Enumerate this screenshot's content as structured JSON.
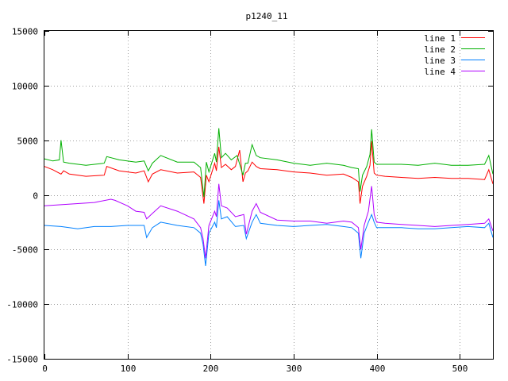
{
  "chart_data": {
    "type": "line",
    "title": "p1240_11",
    "xlabel": "",
    "ylabel": "",
    "xlim": [
      0,
      540
    ],
    "ylim": [
      -15000,
      15000
    ],
    "x_ticks": [
      0,
      100,
      200,
      300,
      400,
      500
    ],
    "y_ticks": [
      -15000,
      -10000,
      -5000,
      0,
      5000,
      10000,
      15000
    ],
    "grid": true,
    "legend_position": "top-right",
    "series": [
      {
        "name": "line 1",
        "color": "#ff0000",
        "x": [
          0,
          10,
          20,
          23,
          30,
          50,
          72,
          75,
          90,
          110,
          120,
          125,
          130,
          140,
          160,
          180,
          188,
          192,
          195,
          198,
          205,
          207,
          210,
          213,
          218,
          225,
          230,
          235,
          239,
          242,
          245,
          250,
          255,
          260,
          280,
          300,
          320,
          340,
          360,
          370,
          378,
          380,
          383,
          388,
          392,
          394,
          397,
          400,
          410,
          430,
          450,
          470,
          490,
          510,
          530,
          535,
          540
        ],
        "y": [
          2600,
          2300,
          1900,
          2200,
          1900,
          1700,
          1800,
          2600,
          2200,
          2000,
          2200,
          1200,
          1900,
          2300,
          2000,
          2100,
          1600,
          -800,
          1800,
          1200,
          2900,
          2200,
          4400,
          2500,
          2800,
          2300,
          2600,
          4100,
          1200,
          2000,
          2200,
          3000,
          2600,
          2400,
          2300,
          2100,
          2000,
          1800,
          1900,
          1600,
          1200,
          -800,
          800,
          1700,
          2700,
          4900,
          2000,
          1800,
          1700,
          1600,
          1500,
          1600,
          1500,
          1500,
          1400,
          2300,
          1000
        ]
      },
      {
        "name": "line 2",
        "color": "#00b000",
        "x": [
          0,
          10,
          18,
          20,
          23,
          30,
          50,
          72,
          75,
          90,
          110,
          120,
          125,
          130,
          140,
          160,
          180,
          188,
          192,
          195,
          198,
          205,
          207,
          210,
          213,
          218,
          225,
          232,
          239,
          242,
          245,
          250,
          255,
          260,
          280,
          300,
          320,
          340,
          360,
          370,
          378,
          380,
          383,
          388,
          392,
          394,
          397,
          400,
          410,
          430,
          450,
          470,
          490,
          510,
          530,
          535,
          540
        ],
        "y": [
          3300,
          3100,
          3200,
          5000,
          3000,
          2900,
          2700,
          2900,
          3500,
          3200,
          3000,
          3100,
          2200,
          2900,
          3600,
          3000,
          3000,
          2500,
          -200,
          3000,
          2100,
          3800,
          3000,
          6100,
          3400,
          3800,
          3200,
          3600,
          1800,
          2900,
          2900,
          4600,
          3600,
          3400,
          3200,
          2900,
          2700,
          2900,
          2700,
          2500,
          2400,
          300,
          1800,
          2600,
          3700,
          6000,
          3000,
          2800,
          2800,
          2800,
          2700,
          2900,
          2700,
          2700,
          2800,
          3600,
          1900
        ]
      },
      {
        "name": "line 3",
        "color": "#0080ff",
        "x": [
          0,
          20,
          40,
          60,
          80,
          100,
          110,
          120,
          123,
          130,
          140,
          160,
          180,
          188,
          191,
          194,
          198,
          205,
          207,
          210,
          213,
          220,
          230,
          240,
          243,
          250,
          255,
          260,
          280,
          300,
          320,
          340,
          360,
          370,
          378,
          381,
          385,
          390,
          394,
          397,
          400,
          410,
          430,
          450,
          470,
          490,
          510,
          530,
          535,
          540
        ],
        "y": [
          -2800,
          -2900,
          -3100,
          -2900,
          -2900,
          -2800,
          -2800,
          -2800,
          -3900,
          -3000,
          -2500,
          -2800,
          -3000,
          -3500,
          -4500,
          -6500,
          -3500,
          -2500,
          -3000,
          -500,
          -2200,
          -2000,
          -2900,
          -2800,
          -4000,
          -2500,
          -1800,
          -2600,
          -2800,
          -2900,
          -2800,
          -2700,
          -2900,
          -3000,
          -3500,
          -5800,
          -3500,
          -2500,
          -1800,
          -2500,
          -3000,
          -3000,
          -3000,
          -3100,
          -3100,
          -3000,
          -2900,
          -3000,
          -2600,
          -3900
        ]
      },
      {
        "name": "line 4",
        "color": "#b000ff",
        "x": [
          0,
          20,
          40,
          60,
          80,
          85,
          100,
          110,
          120,
          123,
          130,
          140,
          160,
          180,
          188,
          191,
          194,
          198,
          205,
          207,
          210,
          213,
          220,
          230,
          240,
          243,
          250,
          255,
          260,
          280,
          300,
          320,
          340,
          360,
          370,
          378,
          381,
          385,
          390,
          394,
          397,
          400,
          410,
          430,
          450,
          470,
          490,
          510,
          530,
          535,
          540
        ],
        "y": [
          -1000,
          -900,
          -800,
          -700,
          -400,
          -500,
          -1000,
          -1500,
          -1600,
          -2200,
          -1700,
          -1000,
          -1500,
          -2200,
          -3000,
          -4000,
          -5800,
          -2800,
          -1500,
          -2000,
          1000,
          -1000,
          -1200,
          -2000,
          -1800,
          -3600,
          -1500,
          -800,
          -1600,
          -2300,
          -2400,
          -2400,
          -2600,
          -2400,
          -2500,
          -3000,
          -5000,
          -2800,
          -1500,
          800,
          -1800,
          -2500,
          -2600,
          -2700,
          -2800,
          -2900,
          -2800,
          -2700,
          -2600,
          -2200,
          -3300
        ]
      }
    ]
  }
}
